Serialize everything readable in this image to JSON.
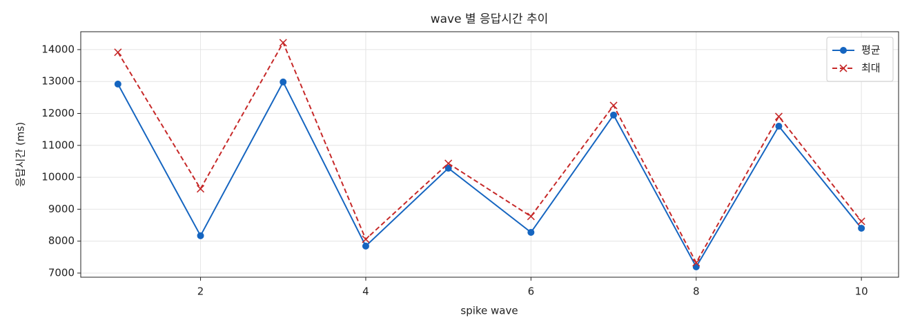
{
  "chart_data": {
    "type": "line",
    "title": "wave 별 응답시간 추이",
    "xlabel": "spike wave",
    "ylabel": "응답시간 (ms)",
    "x": [
      1,
      2,
      3,
      4,
      5,
      6,
      7,
      8,
      9,
      10
    ],
    "series": [
      {
        "name": "평균",
        "color": "#1565c0",
        "marker": "o",
        "linestyle": "solid",
        "values": [
          12920,
          8170,
          12985,
          7845,
          10285,
          8275,
          11950,
          7195,
          11600,
          8405
        ]
      },
      {
        "name": "최대",
        "color": "#c62828",
        "marker": "x",
        "linestyle": "dashed",
        "values": [
          13915,
          9640,
          14215,
          8060,
          10435,
          8775,
          12250,
          7325,
          11905,
          8620
        ]
      }
    ],
    "xlim": [
      0.55,
      10.45
    ],
    "xticks": [
      2,
      4,
      6,
      8,
      10
    ],
    "ylim": [
      6870,
      14560
    ],
    "yticks": [
      7000,
      8000,
      9000,
      10000,
      11000,
      12000,
      13000,
      14000
    ],
    "grid": true,
    "legend": "upper right"
  }
}
